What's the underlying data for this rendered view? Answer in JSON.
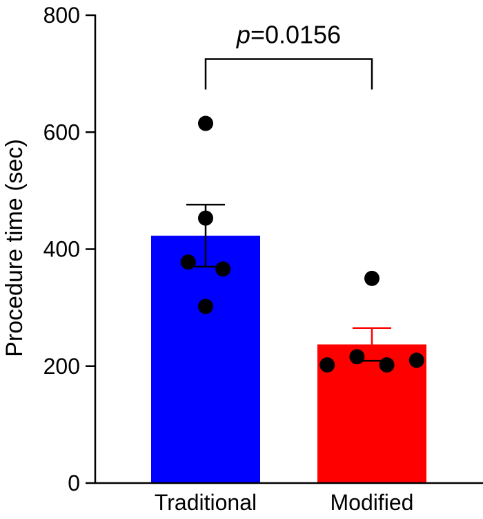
{
  "chart_data": {
    "type": "bar",
    "title": "",
    "xlabel": "",
    "ylabel": "Procedure time (sec)",
    "ylim": [
      0,
      800
    ],
    "yticks": [
      0,
      200,
      400,
      600,
      800
    ],
    "yticks_labels": [
      "0",
      "200",
      "400",
      "600",
      "800"
    ],
    "categories": [
      "Traditional",
      "Modified"
    ],
    "values": [
      423,
      237
    ],
    "sem": [
      53,
      28
    ],
    "colors": [
      "#0000ff",
      "#ff0000"
    ],
    "points": [
      [
        {
          "value": 615,
          "jitter": 0
        },
        {
          "value": 453,
          "jitter": 0
        },
        {
          "value": 378,
          "jitter": -0.35
        },
        {
          "value": 366,
          "jitter": 0.35
        },
        {
          "value": 302,
          "jitter": 0
        }
      ],
      [
        {
          "value": 350,
          "jitter": 0
        },
        {
          "value": 202,
          "jitter": -0.9
        },
        {
          "value": 216,
          "jitter": -0.3
        },
        {
          "value": 202,
          "jitter": 0.3
        },
        {
          "value": 210,
          "jitter": 0.9
        }
      ]
    ],
    "significance": {
      "p_prefix": "p",
      "p_text": "=0.0156",
      "bracket_top": 725,
      "bracket_bottom": 673
    }
  }
}
